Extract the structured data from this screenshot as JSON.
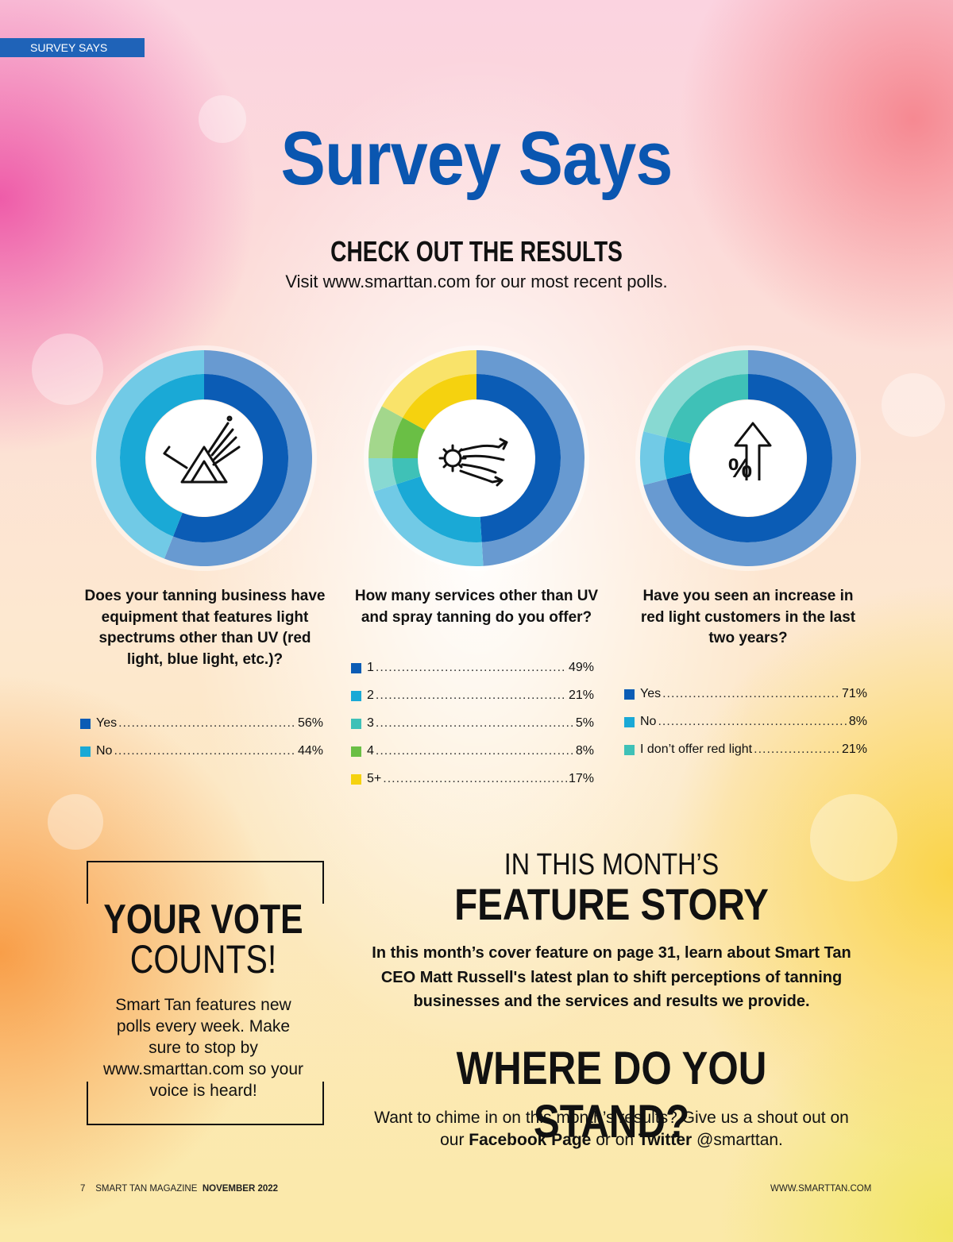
{
  "section_tab": "SURVEY SAYS",
  "header": {
    "title": "Survey Says",
    "subtitle": "CHECK OUT THE RESULTS",
    "visit_text": "Visit www.smarttan.com for our most recent polls."
  },
  "colors": {
    "brand_blue": "#1f63b8",
    "title_blue": "#0a56b0"
  },
  "icons": [
    "prism-light-icon",
    "airflow-gears-icon",
    "percent-increase-arrow-icon"
  ],
  "chart_data": [
    {
      "type": "pie",
      "title": "Does your tanning business have equipment that features light spectrums other than UV (red light, blue light, etc.)?",
      "categories": [
        "Yes",
        "No"
      ],
      "values": [
        56,
        44
      ],
      "colors": [
        "#0b5cb5",
        "#1aa9d6"
      ],
      "legend_values": [
        "56%",
        "44%"
      ]
    },
    {
      "type": "pie",
      "title": "How many services other than UV and spray tanning do you offer?",
      "categories": [
        "1",
        "2",
        "3",
        "4",
        "5+"
      ],
      "values": [
        49,
        21,
        5,
        8,
        17
      ],
      "colors": [
        "#0b5cb5",
        "#1aa9d6",
        "#3fc1b7",
        "#6abf45",
        "#f5d20f"
      ],
      "legend_values": [
        "49%",
        "21%",
        "5%",
        "8%",
        "17%"
      ]
    },
    {
      "type": "pie",
      "title": "Have you seen an increase in red light customers in the last two years?",
      "categories": [
        "Yes",
        "No",
        "I don’t offer red light"
      ],
      "values": [
        71,
        8,
        21
      ],
      "colors": [
        "#0b5cb5",
        "#1aa9d6",
        "#3fc1b7"
      ],
      "legend_values": [
        "71%",
        "8%",
        "21%"
      ]
    }
  ],
  "vote": {
    "title1": "YOUR VOTE",
    "title2": "COUNTS!",
    "text": "Smart Tan features new polls every week. Make sure to stop by www.smarttan.com so your voice is heard!"
  },
  "feature": {
    "pre": "IN THIS MONTH’S",
    "title": "FEATURE STORY",
    "text": "In this month’s cover feature on page 31, learn about Smart Tan CEO Matt Russell's latest plan to shift perceptions of tanning businesses and the services and results we provide."
  },
  "stand": {
    "title": "WHERE DO YOU STAND?",
    "text_before": "Want to chime in on this month’s results? Give us a shout out on our",
    "facebook": "Facebook Page",
    "text_mid": "or on",
    "twitter": "Twitter",
    "text_after": "@smarttan."
  },
  "footer": {
    "page_number": "7",
    "magazine": "SMART TAN MAGAZINE",
    "issue": "NOVEMBER 2022",
    "website": "WWW.SMARTTAN.COM"
  }
}
